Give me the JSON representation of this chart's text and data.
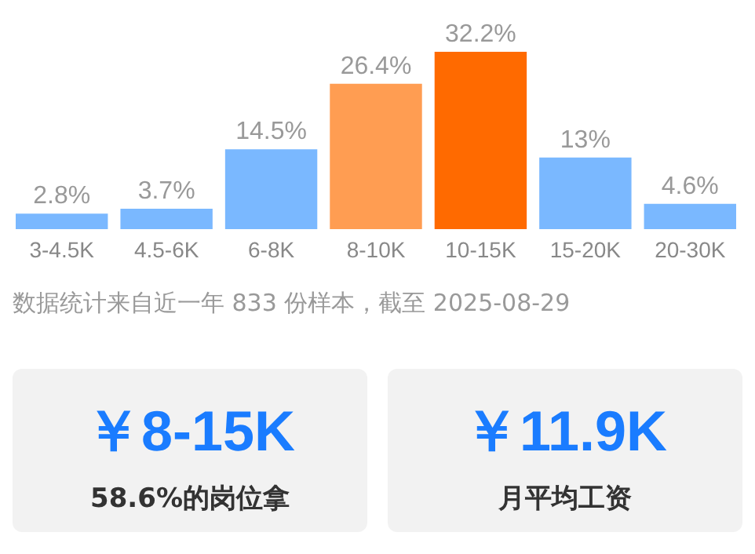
{
  "chart_data": [
    {
      "type": "bar",
      "categories": [
        "3-4.5K",
        "4.5-6K",
        "6-8K",
        "8-10K",
        "10-15K",
        "15-20K",
        "20-30K"
      ],
      "values": [
        2.8,
        3.7,
        14.5,
        26.4,
        32.2,
        13,
        4.6
      ],
      "colors": [
        "#7ab8ff",
        "#7ab8ff",
        "#7ab8ff",
        "#ff9d52",
        "#ff6a00",
        "#7ab8ff",
        "#7ab8ff"
      ],
      "value_labels": [
        "2.8%",
        "3.7%",
        "14.5%",
        "26.4%",
        "32.2%",
        "13%",
        "4.6%"
      ],
      "annotations": [
        "数据统计来自近一年 833 份样本，截至 2025-08-29"
      ]
    },
    {
      "type": "other",
      "title": "￥8-15K",
      "subtitle": "58.6%的岗位拿"
    },
    {
      "type": "other",
      "title": "￥11.9K",
      "subtitle": "月平均工资"
    }
  ]
}
